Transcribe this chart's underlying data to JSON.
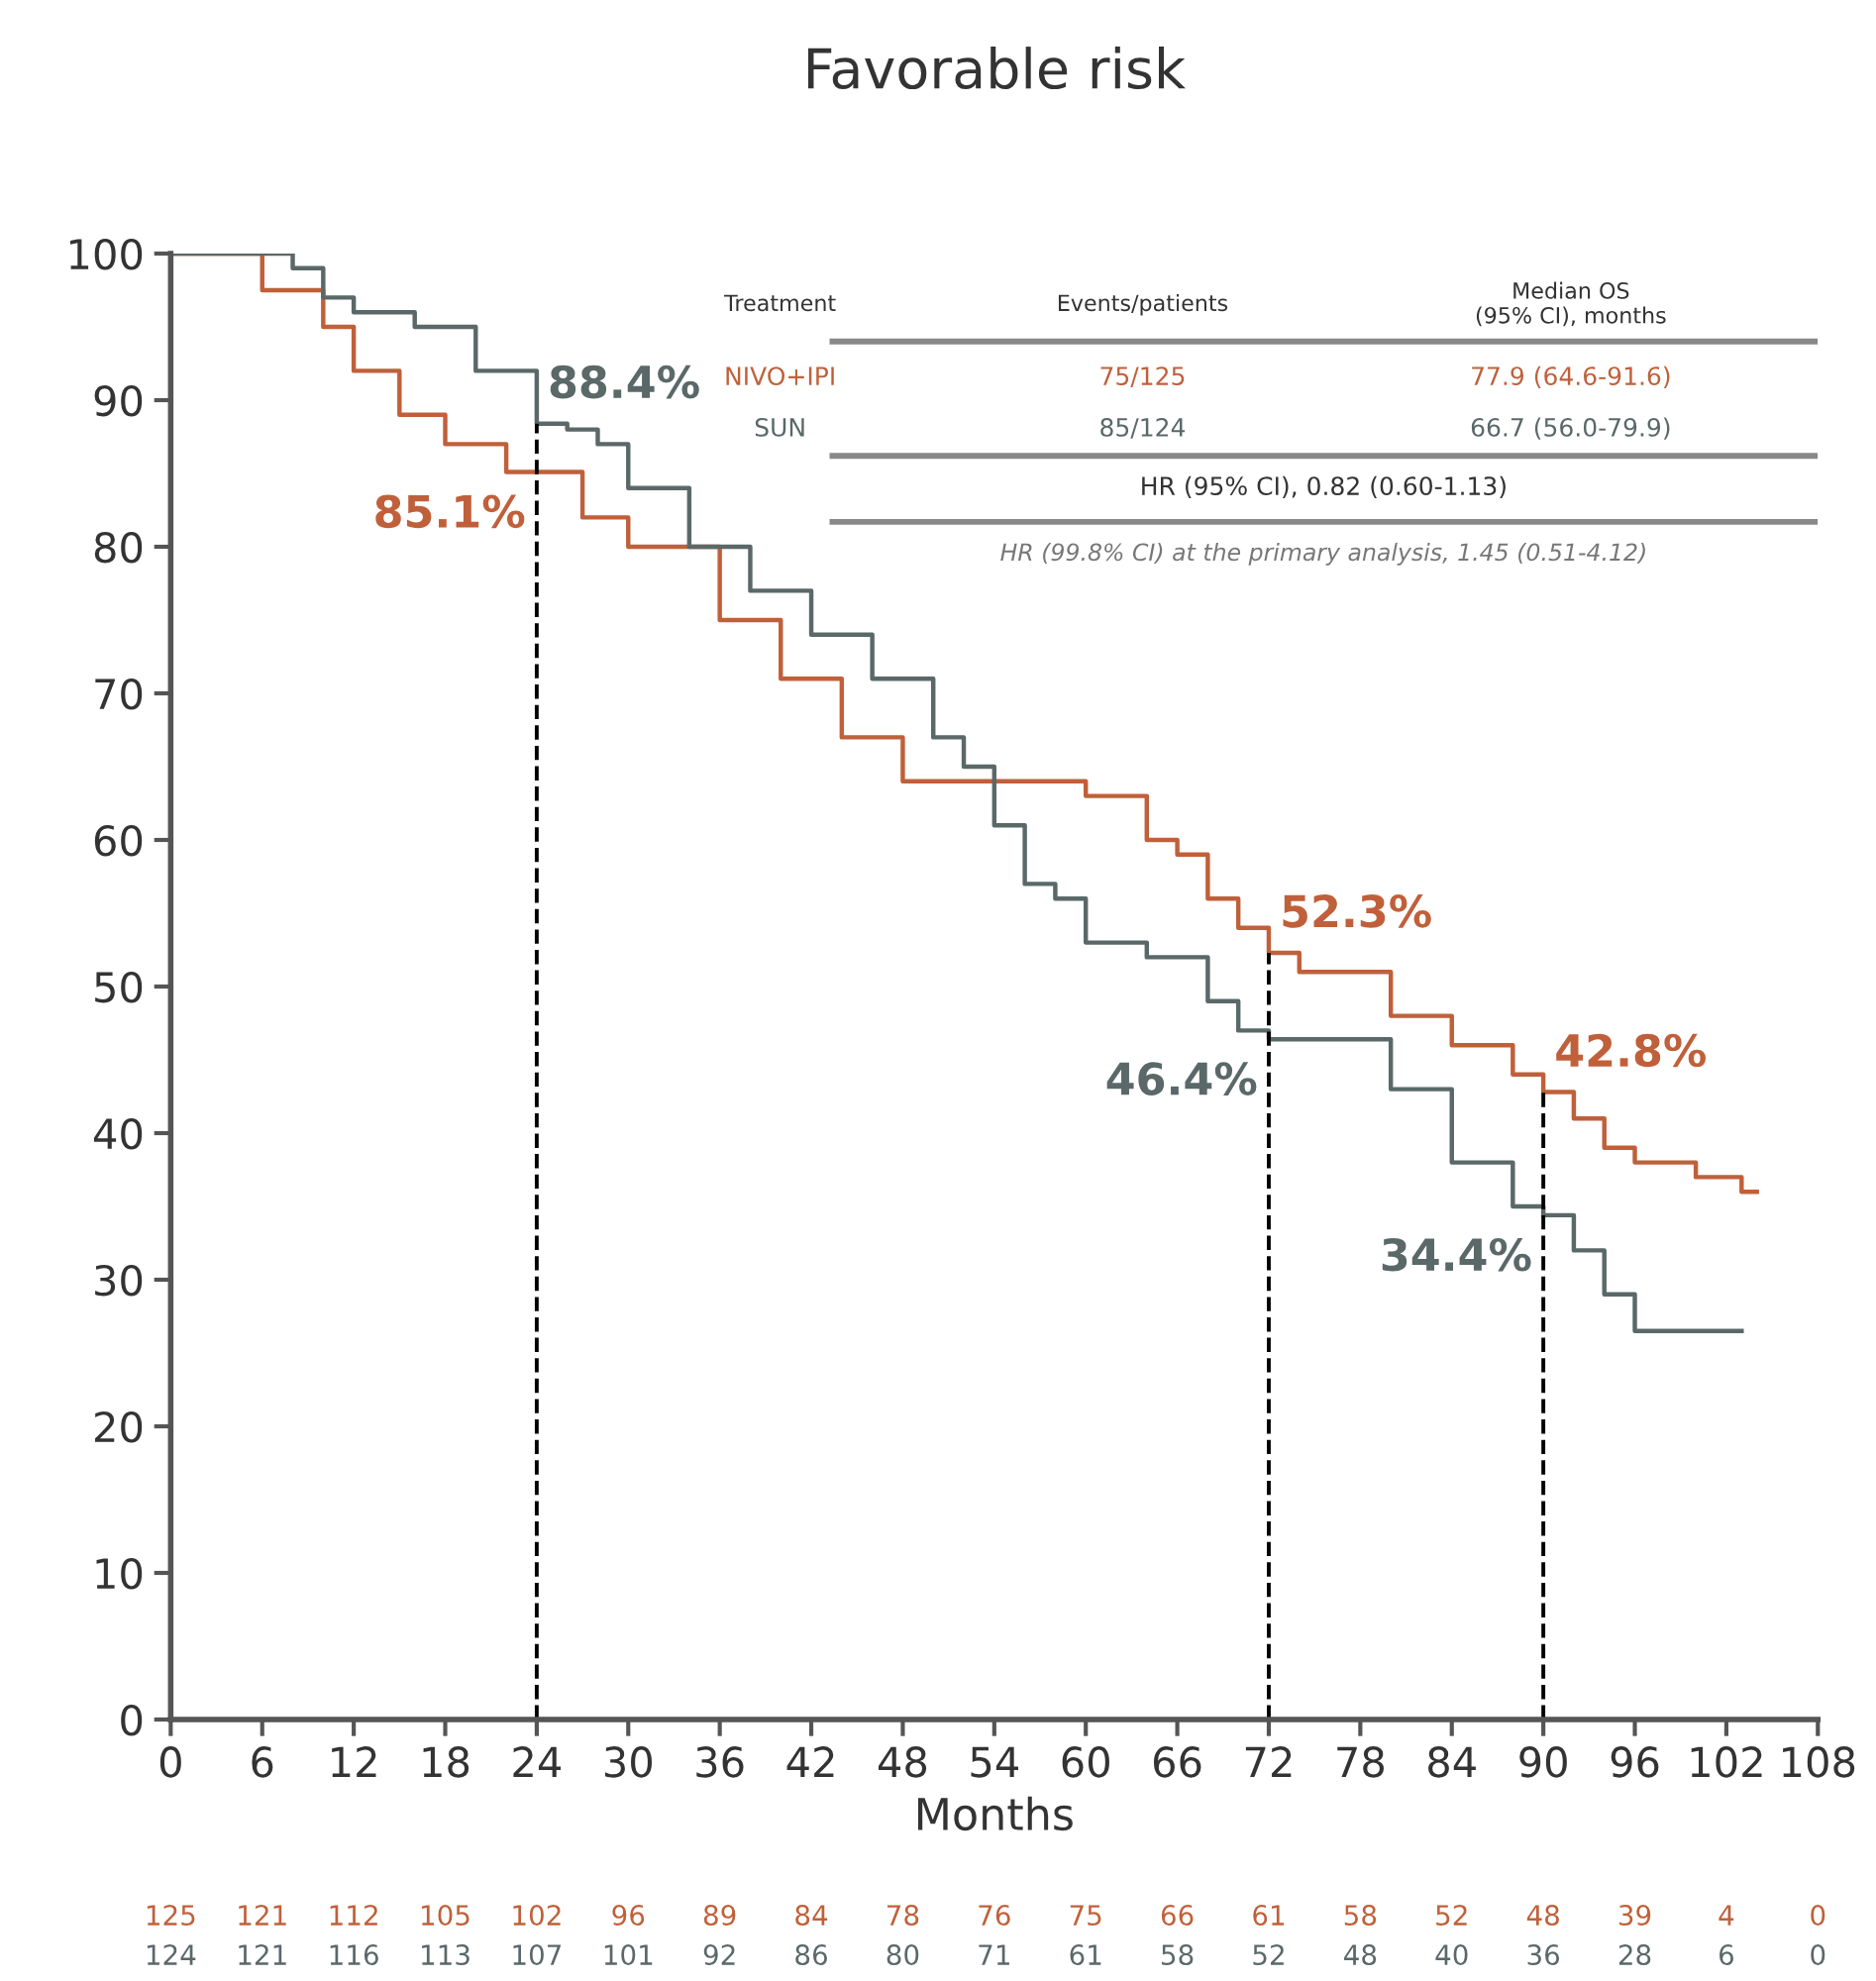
{
  "chart_data": {
    "type": "step",
    "title": "Favorable risk",
    "xlabel": "Months",
    "xlim": [
      0,
      108
    ],
    "ylim": [
      0,
      100
    ],
    "xticks": [
      0,
      6,
      12,
      18,
      24,
      30,
      36,
      42,
      48,
      54,
      60,
      66,
      72,
      78,
      84,
      90,
      96,
      102,
      108
    ],
    "yticks": [
      0,
      10,
      20,
      30,
      40,
      50,
      60,
      70,
      80,
      90,
      100
    ],
    "grid": false,
    "legend": false,
    "marker": "none",
    "line_style": "solid",
    "series": [
      {
        "color": "#c0603a",
        "x": [
          0,
          6,
          10,
          12,
          15,
          18,
          22,
          24,
          27,
          30,
          36,
          40,
          44,
          48,
          52,
          56,
          60,
          64,
          66,
          68,
          70,
          72,
          74,
          78,
          80,
          84,
          88,
          90,
          92,
          94,
          96,
          100,
          103,
          104
        ],
        "values": [
          100,
          97.5,
          95,
          92,
          89,
          87,
          85.1,
          85.1,
          82,
          80,
          75,
          71,
          67,
          64,
          64,
          64,
          63,
          60,
          59,
          56,
          54,
          52.3,
          51,
          51,
          48,
          46,
          44,
          42.8,
          41,
          39,
          38,
          37,
          36,
          36
        ]
      },
      {
        "color": "#5a6868",
        "x": [
          0,
          5,
          8,
          10,
          12,
          16,
          20,
          24,
          26,
          28,
          30,
          34,
          38,
          42,
          46,
          50,
          52,
          54,
          56,
          58,
          60,
          64,
          68,
          70,
          72,
          78,
          80,
          84,
          88,
          90,
          92,
          94,
          96,
          103
        ],
        "values": [
          100,
          100,
          99,
          97,
          96,
          95,
          92,
          88.4,
          88,
          87,
          84,
          80,
          77,
          74,
          71,
          67,
          65,
          61,
          57,
          56,
          53,
          52,
          49,
          47,
          46.4,
          46.4,
          43,
          38,
          35,
          34.4,
          32,
          29,
          26.5,
          26.5
        ]
      }
    ],
    "ref_lines": [
      {
        "axis": "x",
        "value": 24,
        "color": "#000000",
        "line_style": "dashed"
      },
      {
        "axis": "x",
        "value": 72,
        "color": "#000000",
        "line_style": "dashed"
      },
      {
        "axis": "x",
        "value": 90,
        "color": "#000000",
        "line_style": "dashed"
      }
    ],
    "annotations": [
      {
        "text": "88.4%",
        "x": 24,
        "y": 88.4
      },
      {
        "text": "85.1%",
        "x": 24,
        "y": 85.1
      },
      {
        "text": "52.3%",
        "x": 72,
        "y": 52.3
      },
      {
        "text": "46.4%",
        "x": 72,
        "y": 46.4
      },
      {
        "text": "42.8%",
        "x": 90,
        "y": 42.8
      },
      {
        "text": "34.4%",
        "x": 90,
        "y": 34.4
      },
      "Treatment",
      "Events/patients",
      "Median OS\n(95% CI), months",
      "NIVO+IPI",
      "75/125",
      "77.9 (64.6-91.6)",
      "SUN",
      "85/124",
      "66.7 (56.0-79.9)",
      "HR (95% CI), 0.82 (0.60-1.13)",
      "HR (99.8% CI) at the primary analysis, 1.45 (0.51-4.12)",
      "125 121 112 105 102 96 89 84 78 76 75 66 61 58 52 48 39 4 0",
      "124 121 116 113 107 101 92 86 80 71 61 58 52 48 40 36 28 6 0"
    ]
  }
}
